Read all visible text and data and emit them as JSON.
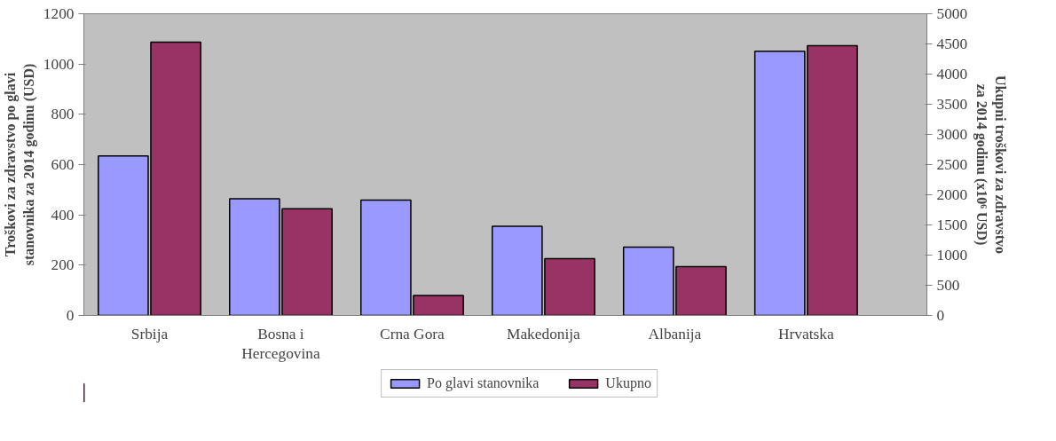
{
  "chart_data": {
    "type": "bar",
    "categories": [
      "Srbija",
      "Bosna i Hercegovina",
      "Crna Gora",
      "Makedonija",
      "Albanija",
      "Hrvatska"
    ],
    "series": [
      {
        "name": "Po glavi stanovnika",
        "color": "#9999ff",
        "values": [
          634,
          464,
          459,
          355,
          272,
          1051
        ]
      },
      {
        "name": "Ukupno",
        "color": "#993366",
        "axis": "y2",
        "values": [
          4530,
          1770,
          330,
          940,
          810,
          4470
        ]
      }
    ],
    "ylabel": "Troškovi za zdravstvo po glavi stanovnika za 2014 godinu (USD)",
    "y2label": "Ukupni troškovi za zdravstvo za 2014 godinu (x10⁶ USD)",
    "ylim": [
      0,
      1200
    ],
    "yticks": [
      0,
      200,
      400,
      600,
      800,
      1000,
      1200
    ],
    "y2lim": [
      0,
      5000
    ],
    "y2ticks": [
      0,
      500,
      1000,
      1500,
      2000,
      2500,
      3000,
      3500,
      4000,
      4500,
      5000
    ],
    "grid": false,
    "legend": "bottom"
  }
}
